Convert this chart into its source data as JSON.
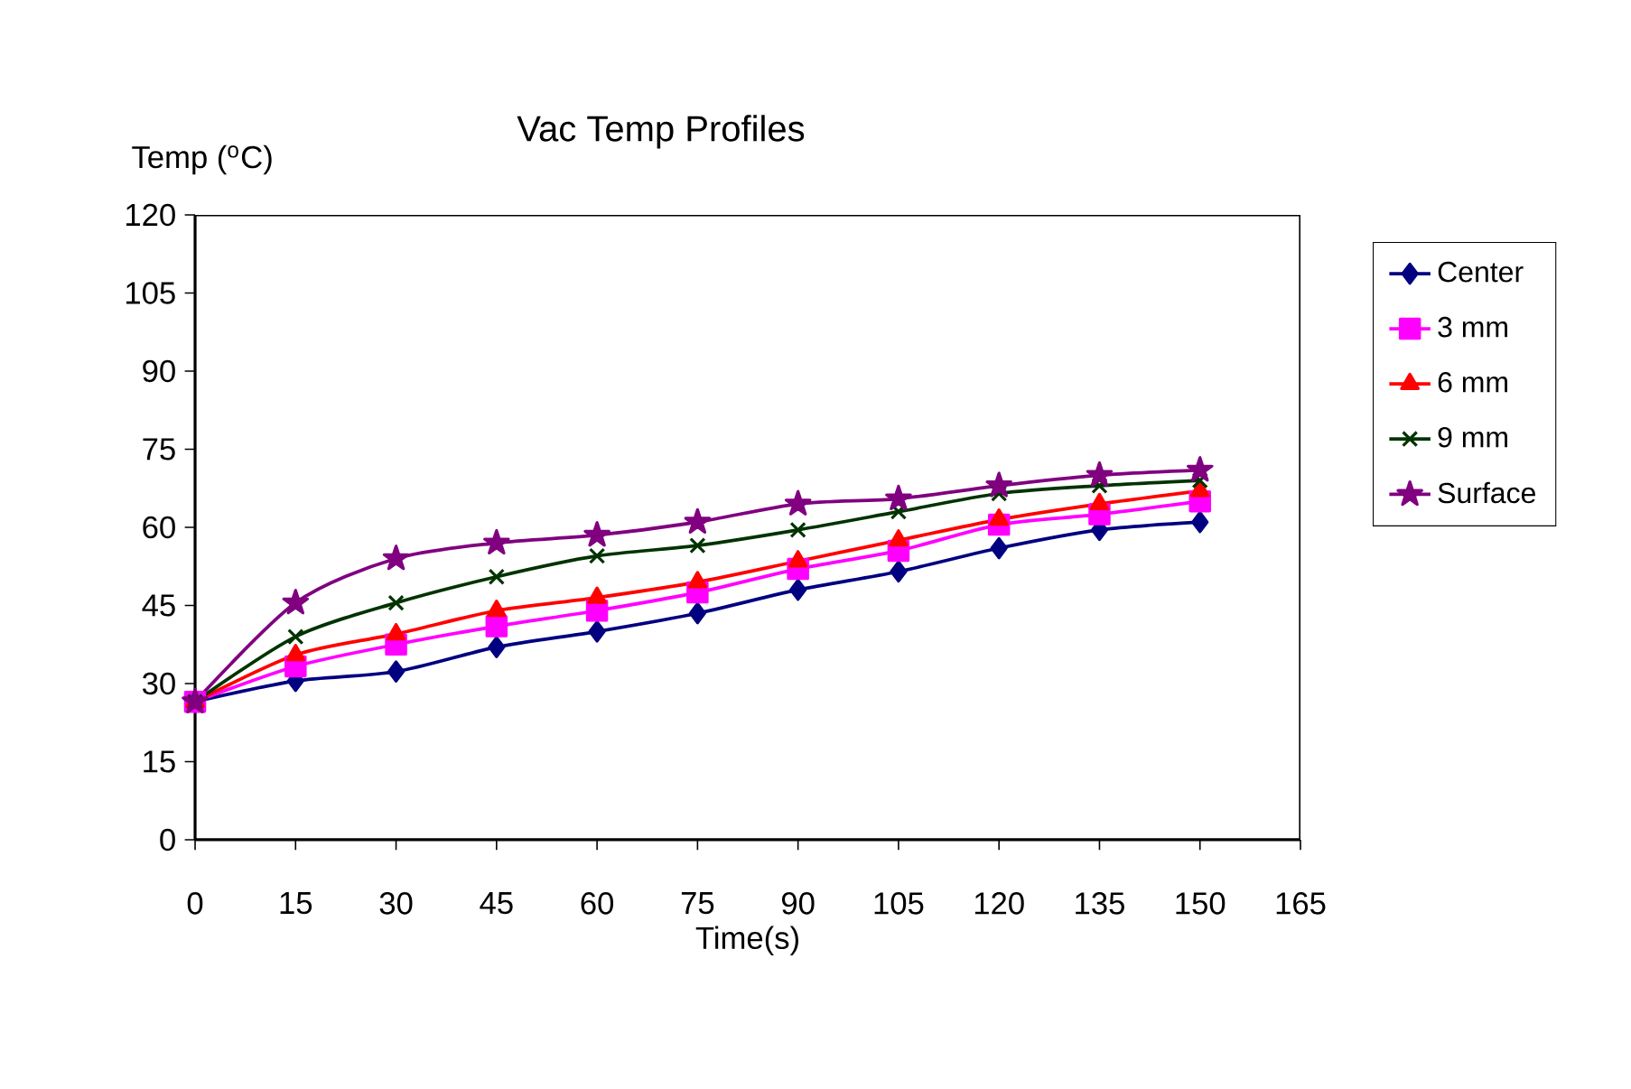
{
  "chart_data": {
    "type": "line",
    "title": "Vac Temp Profiles",
    "xlabel": "Time(s)",
    "ylabel": "Temp ($^{o}$C)",
    "x": [
      0,
      15,
      30,
      45,
      60,
      75,
      90,
      105,
      120,
      135,
      150
    ],
    "series": [
      {
        "name": "Center",
        "color": "#000080",
        "marker": "diamond",
        "values": [
          26.5,
          30.5,
          32.3,
          37,
          40,
          43.5,
          48,
          51.5,
          56,
          59.5,
          61
        ]
      },
      {
        "name": "3 mm",
        "color": "#ff00ff",
        "marker": "square",
        "values": [
          26.5,
          33.3,
          37.5,
          41,
          44,
          47.5,
          52,
          55.5,
          60.5,
          62.5,
          65
        ]
      },
      {
        "name": "6 mm",
        "color": "#ff0000",
        "marker": "triangle",
        "values": [
          26.5,
          35.5,
          39.5,
          44,
          46.5,
          49.5,
          53.5,
          57.5,
          61.5,
          64.5,
          67
        ]
      },
      {
        "name": "9 mm",
        "color": "#003300",
        "marker": "cross",
        "values": [
          26.5,
          39,
          45.5,
          50.5,
          54.5,
          56.5,
          59.5,
          63,
          66.5,
          68,
          69
        ]
      },
      {
        "name": "Surface",
        "color": "#800080",
        "marker": "star",
        "values": [
          26.5,
          45.5,
          54,
          57,
          58.5,
          61,
          64.5,
          65.5,
          68,
          70,
          71
        ]
      }
    ],
    "xlim": [
      0,
      165
    ],
    "ylim": [
      0,
      120
    ],
    "xticks": [
      0,
      15,
      30,
      45,
      60,
      75,
      90,
      105,
      120,
      135,
      150,
      165
    ],
    "yticks": [
      0,
      15,
      30,
      45,
      60,
      75,
      90,
      105,
      120
    ],
    "grid": false,
    "legend": "right"
  }
}
